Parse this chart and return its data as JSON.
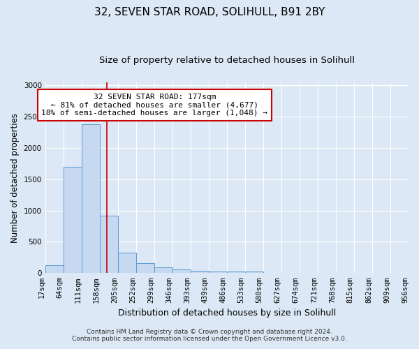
{
  "title": "32, SEVEN STAR ROAD, SOLIHULL, B91 2BY",
  "subtitle": "Size of property relative to detached houses in Solihull",
  "xlabel": "Distribution of detached houses by size in Solihull",
  "ylabel": "Number of detached properties",
  "footnote1": "Contains HM Land Registry data © Crown copyright and database right 2024.",
  "footnote2": "Contains public sector information licensed under the Open Government Licence v3.0.",
  "bar_edges": [
    17,
    64,
    111,
    158,
    205,
    252,
    299,
    346,
    393,
    439,
    486,
    533,
    580,
    627,
    674,
    721,
    768,
    815,
    862,
    909,
    956
  ],
  "bar_heights": [
    130,
    1700,
    2380,
    920,
    330,
    155,
    90,
    55,
    40,
    30,
    25,
    30,
    0,
    0,
    0,
    0,
    0,
    0,
    0,
    0
  ],
  "bar_color": "#c6d9f1",
  "bar_edge_color": "#5b9bd5",
  "vline_x": 177,
  "vline_color": "#cc0000",
  "annotation_text": "32 SEVEN STAR ROAD: 177sqm\n← 81% of detached houses are smaller (4,677)\n18% of semi-detached houses are larger (1,048) →",
  "annotation_box_color": "#ffffff",
  "annotation_box_edge": "#cc0000",
  "ylim": [
    0,
    3050
  ],
  "yticks": [
    0,
    500,
    1000,
    1500,
    2000,
    2500,
    3000
  ],
  "background_color": "#dce8f5",
  "plot_background": "#dce8f5",
  "grid_color": "#ffffff",
  "title_fontsize": 11,
  "subtitle_fontsize": 9.5,
  "axis_label_fontsize": 8.5,
  "tick_fontsize": 7.5,
  "annotation_fontsize": 8,
  "footnote_fontsize": 6.5
}
